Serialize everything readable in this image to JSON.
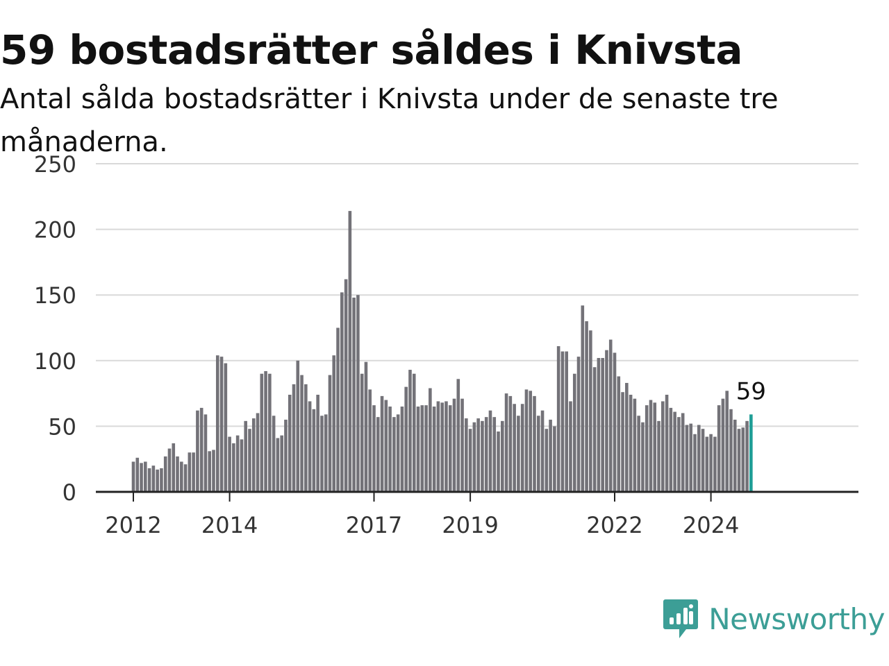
{
  "header": {
    "title": "59 bostadsrätter såldes i Knivsta",
    "subtitle": "Antal sålda bostadsrätter i Knivsta under de senaste tre månaderna."
  },
  "brand": {
    "name": "Newsworthy",
    "color": "#3c9e96"
  },
  "colors": {
    "bar": "#737278",
    "highlight": "#1f9e96"
  },
  "chart_data": {
    "type": "bar",
    "x_start": "2012-01",
    "x_interval": "month",
    "xticks": [
      "2012",
      "2014",
      "2017",
      "2019",
      "2022",
      "2024"
    ],
    "yticks": [
      0,
      50,
      100,
      150,
      200,
      250
    ],
    "ylim": [
      0,
      250
    ],
    "grid": true,
    "highlight_last": true,
    "highlight_label": "59",
    "values": [
      23,
      26,
      22,
      23,
      18,
      20,
      17,
      18,
      27,
      33,
      37,
      27,
      23,
      21,
      30,
      30,
      62,
      64,
      59,
      31,
      32,
      104,
      103,
      98,
      42,
      37,
      43,
      40,
      54,
      48,
      56,
      60,
      90,
      92,
      90,
      58,
      41,
      43,
      55,
      74,
      82,
      100,
      89,
      82,
      69,
      63,
      74,
      58,
      59,
      89,
      104,
      125,
      152,
      162,
      214,
      148,
      150,
      90,
      99,
      78,
      66,
      57,
      73,
      70,
      65,
      57,
      59,
      65,
      80,
      93,
      90,
      65,
      66,
      66,
      79,
      65,
      69,
      68,
      69,
      66,
      71,
      86,
      71,
      56,
      48,
      53,
      56,
      54,
      57,
      62,
      57,
      46,
      54,
      75,
      73,
      67,
      58,
      67,
      78,
      77,
      73,
      58,
      62,
      48,
      55,
      50,
      111,
      107,
      107,
      69,
      90,
      103,
      142,
      130,
      123,
      95,
      102,
      102,
      108,
      116,
      106,
      88,
      76,
      83,
      74,
      71,
      58,
      53,
      66,
      70,
      68,
      54,
      69,
      74,
      64,
      61,
      57,
      60,
      51,
      52,
      44,
      51,
      48,
      42,
      44,
      42,
      66,
      71,
      77,
      63,
      55,
      48,
      49,
      54,
      59
    ]
  }
}
